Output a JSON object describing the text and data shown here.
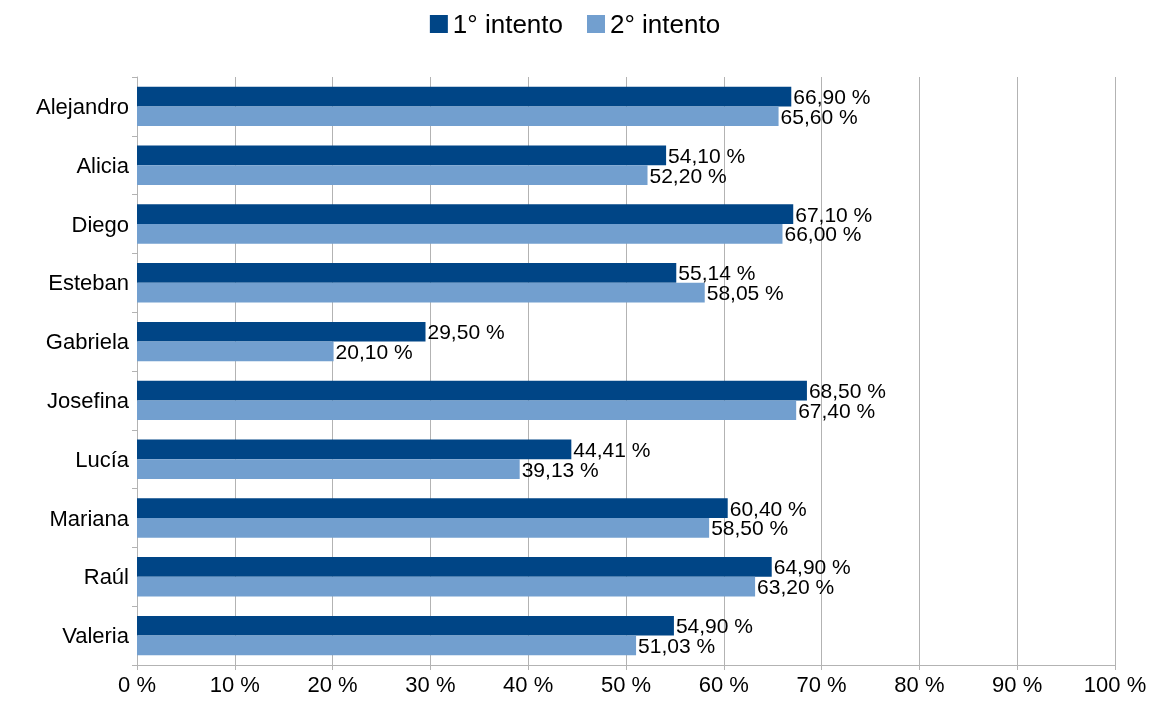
{
  "chart_data": {
    "type": "bar",
    "orientation": "horizontal",
    "categories": [
      "Alejandro",
      "Alicia",
      "Diego",
      "Esteban",
      "Gabriela",
      "Josefina",
      "Lucía",
      "Mariana",
      "Raúl",
      "Valeria"
    ],
    "series": [
      {
        "name": "1° intento",
        "color": "#004586",
        "values": [
          66.9,
          54.1,
          67.1,
          55.14,
          29.5,
          68.5,
          44.41,
          60.4,
          64.9,
          54.9
        ],
        "value_labels": [
          "66,90 %",
          "54,10 %",
          "67,10 %",
          "55,14 %",
          "29,50 %",
          "68,50 %",
          "44,41 %",
          "60,40 %",
          "64,90 %",
          "54,90 %"
        ]
      },
      {
        "name": "2° intento",
        "color": "#729fcf",
        "values": [
          65.6,
          52.2,
          66.0,
          58.05,
          20.1,
          67.4,
          39.13,
          58.5,
          63.2,
          51.03
        ],
        "value_labels": [
          "65,60 %",
          "52,20 %",
          "66,00 %",
          "58,05 %",
          "20,10 %",
          "67,40 %",
          "39,13 %",
          "58,50 %",
          "63,20 %",
          "51,03 %"
        ]
      }
    ],
    "xlim": [
      0,
      100
    ],
    "xticks": [
      {
        "value": 0,
        "label": "0 %"
      },
      {
        "value": 10,
        "label": "10 %"
      },
      {
        "value": 20,
        "label": "20 %"
      },
      {
        "value": 30,
        "label": "30 %"
      },
      {
        "value": 40,
        "label": "40 %"
      },
      {
        "value": 50,
        "label": "50 %"
      },
      {
        "value": 60,
        "label": "60 %"
      },
      {
        "value": 70,
        "label": "70 %"
      },
      {
        "value": 80,
        "label": "80 %"
      },
      {
        "value": 90,
        "label": "90 %"
      },
      {
        "value": 100,
        "label": "100 %"
      }
    ],
    "grid": "x",
    "legend": "top"
  }
}
